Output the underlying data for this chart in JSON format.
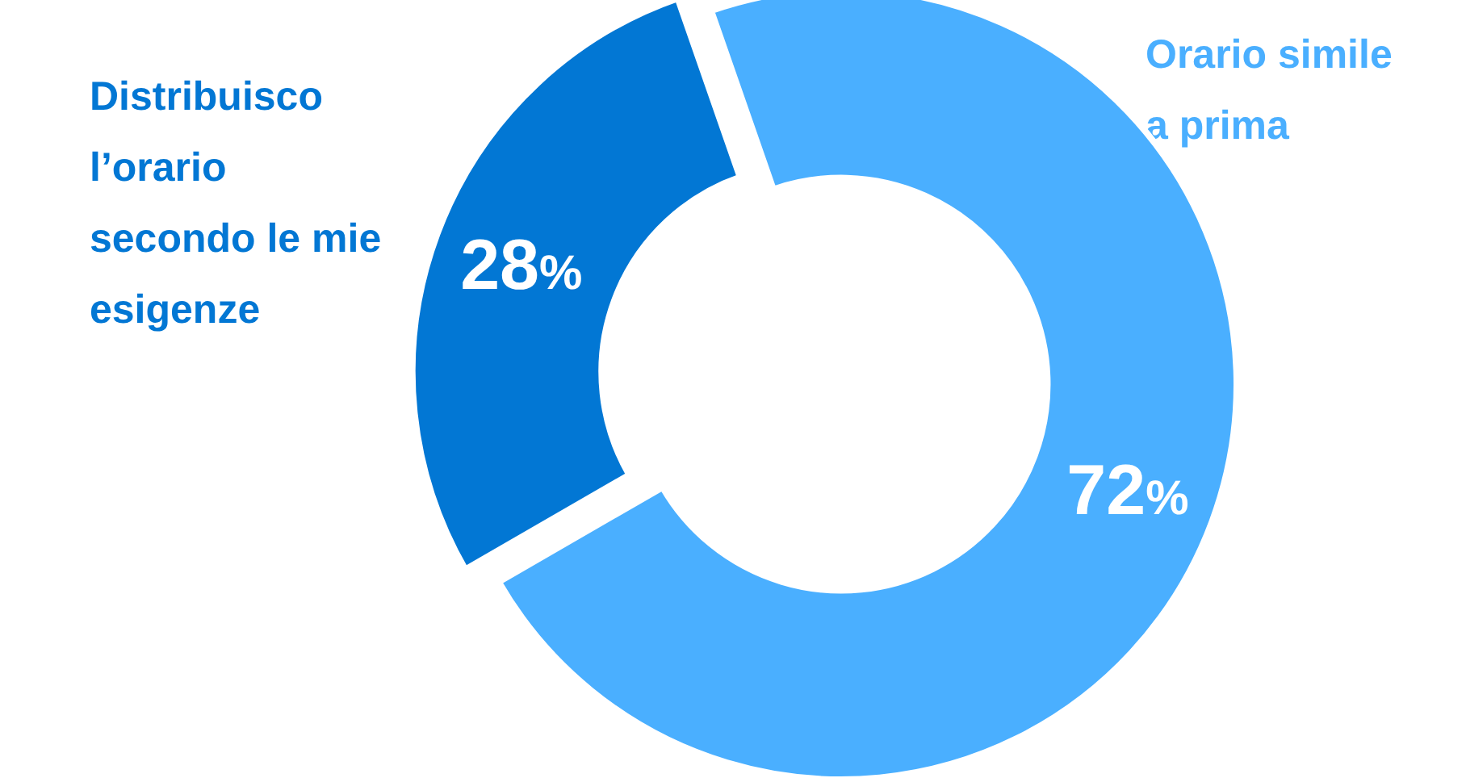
{
  "chart_data": {
    "type": "donut",
    "categories": [
      "Distribuisco l’orario secondo le mie esigenze",
      "Orario simile a prima"
    ],
    "values": [
      28,
      72
    ],
    "colors": [
      "#0277d4",
      "#4aafff"
    ],
    "value_labels": [
      "28%",
      "72%"
    ]
  }
}
